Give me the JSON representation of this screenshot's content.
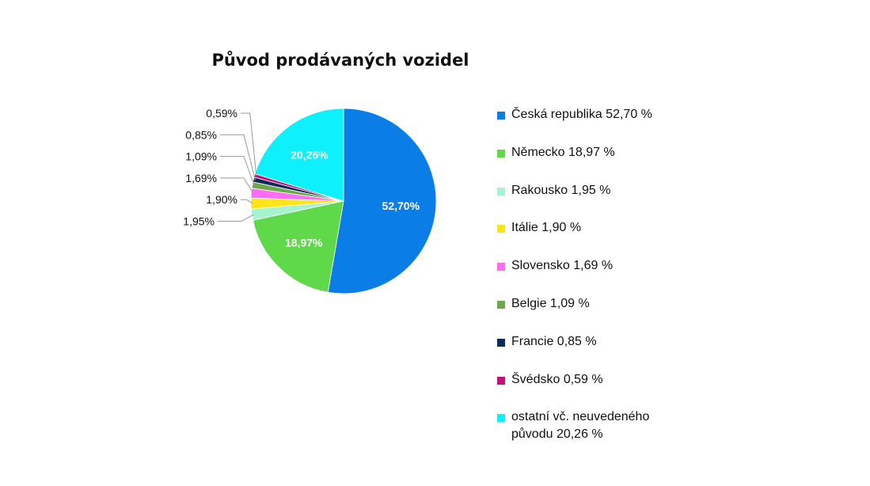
{
  "chart_data": {
    "type": "pie",
    "title": "Původ prodávaných vozidel",
    "slices": [
      {
        "name": "Česká republika 52,70 %",
        "value": 52.7,
        "label": "52,70%",
        "color": "#0a7ee6",
        "label_inside": true
      },
      {
        "name": "Německo 18,97 %",
        "value": 18.97,
        "label": "18,97%",
        "color": "#5fd84a",
        "label_inside": true
      },
      {
        "name": "Rakousko 1,95 %",
        "value": 1.95,
        "label": "1,95%",
        "color": "#a6f3cf",
        "label_inside": false
      },
      {
        "name": "Itálie 1,90 %",
        "value": 1.9,
        "label": "1,90%",
        "color": "#fde519",
        "label_inside": false
      },
      {
        "name": "Slovensko 1,69 %",
        "value": 1.69,
        "label": "1,69%",
        "color": "#fb6ef3",
        "label_inside": false
      },
      {
        "name": "Belgie 1,09 %",
        "value": 1.09,
        "label": "1,09%",
        "color": "#6ea84c",
        "label_inside": false
      },
      {
        "name": "Francie 0,85 %",
        "value": 0.85,
        "label": "0,85%",
        "color": "#0e2a5c",
        "label_inside": false
      },
      {
        "name": "Švédsko 0,59 %",
        "value": 0.59,
        "label": "0,59%",
        "color": "#c3117c",
        "label_inside": false
      },
      {
        "name": "ostatní vč. neuvedeného původu 20,26 %",
        "value": 20.26,
        "label": "20,26%",
        "color": "#0ef0fc",
        "label_inside": true
      }
    ],
    "legend_position": "right"
  }
}
